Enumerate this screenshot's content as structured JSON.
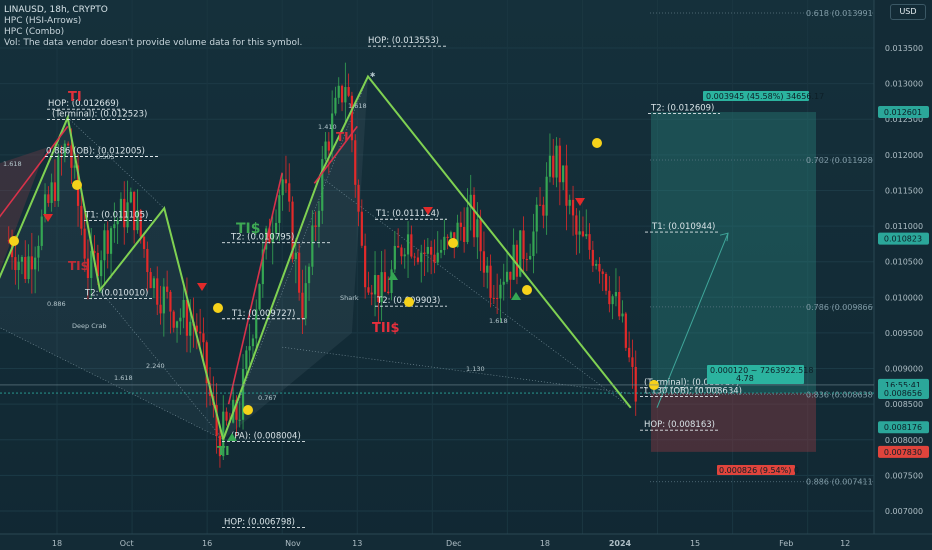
{
  "header": {
    "symbol_line": "LINAUSD, 18h, CRYPTO",
    "indicator1": "HPC (HSI-Arrows)",
    "indicator2": "HPC (Combo)",
    "volume_note": "Vol: The data vendor doesn't provide volume data for this symbol."
  },
  "currency_button": "USD",
  "colors": {
    "background": "#132b36",
    "up_candle": "#35a653",
    "down_candle": "#e22a2a",
    "pattern_line": "#7fd152",
    "forecast_arrow": "#3fa69a",
    "last_price": "#2ba79a",
    "stop_loss": "#e0443c",
    "marker_dot": "#f6d21a"
  },
  "chart_data": {
    "type": "line",
    "title": "LINAUSD, 18h, CRYPTO",
    "y_axis": {
      "ticks": [
        0.0135,
        0.013,
        0.0125,
        0.012,
        0.0115,
        0.011,
        0.0105,
        0.01,
        0.0095,
        0.009,
        0.0085,
        0.008,
        0.0075,
        0.007
      ],
      "tick_labels": [
        "0.013500",
        "0.013000",
        "0.012500",
        "0.012000",
        "0.011500",
        "0.011000",
        "0.010500",
        "0.010000",
        "0.009500",
        "0.009000",
        "0.008500",
        "0.008000",
        "0.007500",
        "0.007000"
      ],
      "range": [
        0.00665,
        0.0141
      ]
    },
    "x_axis": {
      "labels": [
        "18",
        "Oct",
        "16",
        "Nov",
        "13",
        "Dec",
        "18",
        "2024",
        "15",
        "Feb",
        "12"
      ]
    },
    "price_path_x": [
      "2023-09-09",
      "2023-09-12",
      "2023-09-16",
      "2023-09-20",
      "2023-09-24",
      "2023-09-28",
      "2023-10-02",
      "2023-10-06",
      "2023-10-10",
      "2023-10-14",
      "2023-10-18",
      "2023-10-22",
      "2023-10-26",
      "2023-10-30",
      "2023-11-03",
      "2023-11-07",
      "2023-11-11",
      "2023-11-14",
      "2023-11-18",
      "2023-11-22",
      "2023-11-26",
      "2023-11-30",
      "2023-12-04",
      "2023-12-08",
      "2023-12-12",
      "2023-12-16",
      "2023-12-20",
      "2023-12-24",
      "2023-12-28",
      "2024-01-01",
      "2024-01-04"
    ],
    "price_path_y": [
      0.0108,
      0.0104,
      0.0112,
      0.0122,
      0.0103,
      0.011,
      0.0113,
      0.0102,
      0.0098,
      0.0096,
      0.008,
      0.0084,
      0.0104,
      0.0117,
      0.0098,
      0.0121,
      0.0131,
      0.0105,
      0.01,
      0.0109,
      0.0106,
      0.0107,
      0.0112,
      0.0102,
      0.0105,
      0.0109,
      0.012,
      0.0108,
      0.0106,
      0.0097,
      0.0086
    ],
    "pattern_lines": [
      {
        "x": [
          "2023-09-04",
          "2023-09-20",
          "2023-09-26",
          "2023-10-08",
          "2023-10-19"
        ],
        "y": [
          0.0097,
          0.012523,
          0.0101,
          0.01125,
          0.008004
        ]
      },
      {
        "x": [
          "2023-10-19",
          "2023-11-06",
          "2023-11-15",
          "2024-01-03"
        ],
        "y": [
          0.008004,
          0.0117,
          0.0131,
          0.00845
        ]
      }
    ],
    "levels": [
      {
        "label": "HOP: (0.013553)",
        "value": 0.013553
      },
      {
        "label": "HOP: (0.012669)",
        "value": 0.012669
      },
      {
        "label": "(Terminal): (0.012523)",
        "value": 0.012523
      },
      {
        "label": "0.886 (OB): (0.012005)",
        "value": 0.012005
      },
      {
        "label": "T1: (0.011105)",
        "value": 0.011105
      },
      {
        "label": "T2: (0.010795)",
        "value": 0.010795
      },
      {
        "label": "T2: (0.010010)",
        "value": 0.01001
      },
      {
        "label": "T1: (0.009727)",
        "value": 0.009727
      },
      {
        "label": "(PA): (0.008004)",
        "value": 0.008004
      },
      {
        "label": "HOP: (0.006798)",
        "value": 0.006798
      },
      {
        "label": "T1: (0.011124)",
        "value": 0.011124
      },
      {
        "label": "T2: (0.009903)",
        "value": 0.009903
      },
      {
        "label": "T2: (0.012609)",
        "value": 0.012609
      },
      {
        "label": "T1: (0.010944)",
        "value": 0.010944
      },
      {
        "label": "(Terminal): (0.008757)",
        "value": 0.008757
      },
      {
        "label": "1.130 (OB): (0.008634)",
        "value": 0.008634
      },
      {
        "label": "HOP: (0.008163)",
        "value": 0.008163
      }
    ],
    "fib_levels": [
      {
        "label": "0.618 (0.013991)",
        "value": 0.013991
      },
      {
        "label": "0.702 (0.011928)",
        "value": 0.011928
      },
      {
        "label": "0.786 (0.009866)",
        "value": 0.009866
      },
      {
        "label": "0.836 (0.008638)",
        "value": 0.008638
      },
      {
        "label": "0.886 (0.007411)",
        "value": 0.007411
      }
    ],
    "ratio_labels": [
      "1.618",
      "0.886",
      "0.505",
      "1.410",
      "1.618",
      "1.618",
      "2.240",
      "0.767",
      "1.130",
      "1.618"
    ],
    "pattern_names": [
      "Deep Crab",
      "Shark"
    ],
    "signals": [
      "TI",
      "TI$",
      "TI$",
      "TII$",
      "TI",
      "TI"
    ],
    "position": {
      "entry": 0.008656,
      "target": 0.012601,
      "stop": 0.00783,
      "target_label": "0.003945 (45.58%) 34656.17",
      "stop_label": "0.000826 (9.54%) 0",
      "ratio_label_1": "0.000120 ~ 7263922.518",
      "ratio_label_2": "4.78"
    },
    "price_tags": [
      {
        "text": "0.012601",
        "value": 0.012601,
        "color": "#2ba79a"
      },
      {
        "text": "0.010823",
        "value": 0.010823,
        "color": "#2ba79a"
      },
      {
        "text": "16:55:41",
        "value": 0.00877,
        "color": "#2ba79a"
      },
      {
        "text": "0.008656",
        "value": 0.008656,
        "color": "#2ba79a"
      },
      {
        "text": "0.008176",
        "value": 0.008176,
        "color": "#2ba79a"
      },
      {
        "text": "0.007830",
        "value": 0.00783,
        "color": "#e0443c"
      }
    ]
  }
}
